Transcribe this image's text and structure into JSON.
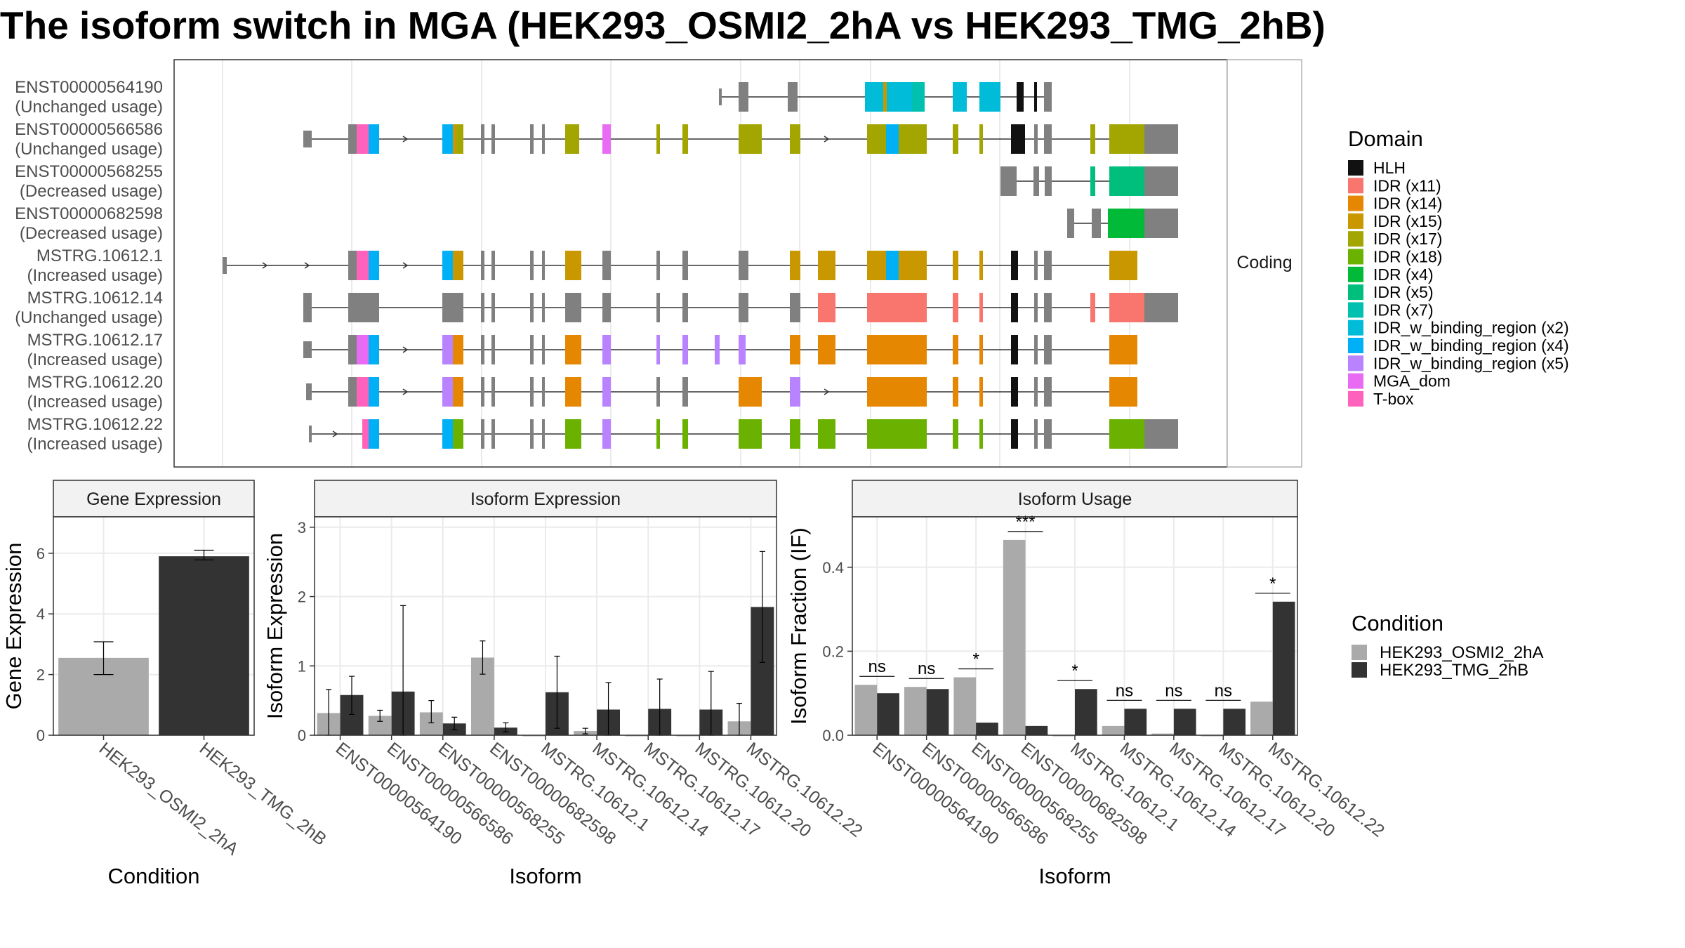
{
  "title": "The isoform switch in MGA (HEK293_OSMI2_2hA vs HEK293_TMG_2hB)",
  "structure": {
    "facet_label": "Coding",
    "isoforms": [
      {
        "id": "ENST00000564190",
        "usage": "(Unchanged usage)"
      },
      {
        "id": "ENST00000566586",
        "usage": "(Unchanged usage)"
      },
      {
        "id": "ENST00000568255",
        "usage": "(Decreased usage)"
      },
      {
        "id": "ENST00000682598",
        "usage": "(Decreased usage)"
      },
      {
        "id": "MSTRG.10612.1",
        "usage": "(Increased usage)"
      },
      {
        "id": "MSTRG.10612.14",
        "usage": "(Unchanged usage)"
      },
      {
        "id": "MSTRG.10612.17",
        "usage": "(Increased usage)"
      },
      {
        "id": "MSTRG.10612.20",
        "usage": "(Increased usage)"
      },
      {
        "id": "MSTRG.10612.22",
        "usage": "(Increased usage)"
      }
    ]
  },
  "domain_legend": {
    "title": "Domain",
    "items": [
      {
        "label": "HLH",
        "color": "#111111"
      },
      {
        "label": "IDR (x11)",
        "color": "#F8766D"
      },
      {
        "label": "IDR (x14)",
        "color": "#E58700"
      },
      {
        "label": "IDR (x15)",
        "color": "#C99800"
      },
      {
        "label": "IDR (x17)",
        "color": "#A3A500"
      },
      {
        "label": "IDR (x18)",
        "color": "#6BB100"
      },
      {
        "label": "IDR (x4)",
        "color": "#00BA38"
      },
      {
        "label": "IDR (x5)",
        "color": "#00BF7D"
      },
      {
        "label": "IDR (x7)",
        "color": "#00C0AF"
      },
      {
        "label": "IDR_w_binding_region (x2)",
        "color": "#00BCD8"
      },
      {
        "label": "IDR_w_binding_region (x4)",
        "color": "#00B0F6"
      },
      {
        "label": "IDR_w_binding_region (x5)",
        "color": "#B983FF"
      },
      {
        "label": "MGA_dom",
        "color": "#E76BF3"
      },
      {
        "label": "T-box",
        "color": "#FF62BC"
      }
    ]
  },
  "condition_legend": {
    "title": "Condition",
    "items": [
      {
        "label": "HEK293_OSMI2_2hA",
        "color": "#AAAAAA"
      },
      {
        "label": "HEK293_TMG_2hB",
        "color": "#333333"
      }
    ]
  },
  "chart_data": [
    {
      "type": "bar",
      "title": "Gene Expression",
      "xlabel": "Condition",
      "ylabel": "Gene Expression",
      "ylim": [
        0,
        7.2
      ],
      "yticks": [
        0,
        2,
        4,
        6
      ],
      "categories": [
        "HEK293_OSMI2_2hA",
        "HEK293_TMG_2hB"
      ],
      "values": [
        2.55,
        5.9
      ],
      "errors": [
        [
          2.0,
          3.08
        ],
        [
          5.78,
          6.1
        ]
      ],
      "colors": [
        "#AAAAAA",
        "#333333"
      ]
    },
    {
      "type": "bar",
      "title": "Isoform Expression",
      "xlabel": "Isoform",
      "ylabel": "Isoform Expression",
      "ylim": [
        0,
        3.15
      ],
      "yticks": [
        0,
        1,
        2,
        3
      ],
      "categories": [
        "ENST00000564190",
        "ENST00000566586",
        "ENST00000568255",
        "ENST00000682598",
        "MSTRG.10612.1",
        "MSTRG.10612.14",
        "MSTRG.10612.17",
        "MSTRG.10612.20",
        "MSTRG.10612.22"
      ],
      "series": [
        {
          "name": "HEK293_OSMI2_2hA",
          "values": [
            0.32,
            0.28,
            0.33,
            1.12,
            0.0,
            0.06,
            0.0,
            0.0,
            0.2
          ],
          "errors": [
            [
              0.0,
              0.66
            ],
            [
              0.2,
              0.36
            ],
            [
              0.18,
              0.5
            ],
            [
              0.88,
              1.36
            ],
            [
              0.0,
              0.0
            ],
            [
              0.02,
              0.1
            ],
            [
              0.0,
              0.0
            ],
            [
              0.0,
              0.0
            ],
            [
              0.0,
              0.46
            ]
          ]
        },
        {
          "name": "HEK293_TMG_2hB",
          "values": [
            0.58,
            0.63,
            0.17,
            0.11,
            0.62,
            0.37,
            0.38,
            0.37,
            1.85
          ],
          "errors": [
            [
              0.3,
              0.85
            ],
            [
              0.0,
              1.87
            ],
            [
              0.08,
              0.26
            ],
            [
              0.05,
              0.18
            ],
            [
              0.1,
              1.14
            ],
            [
              0.0,
              0.76
            ],
            [
              0.0,
              0.81
            ],
            [
              0.0,
              0.92
            ],
            [
              1.05,
              2.65
            ]
          ]
        }
      ]
    },
    {
      "type": "bar",
      "title": "Isoform Usage",
      "xlabel": "Isoform",
      "ylabel": "Isoform Fraction (IF)",
      "ylim": [
        0,
        0.52
      ],
      "yticks": [
        0.0,
        0.2,
        0.4
      ],
      "categories": [
        "ENST00000564190",
        "ENST00000566586",
        "ENST00000568255",
        "ENST00000682598",
        "MSTRG.10612.1",
        "MSTRG.10612.14",
        "MSTRG.10612.17",
        "MSTRG.10612.20",
        "MSTRG.10612.22"
      ],
      "series": [
        {
          "name": "HEK293_OSMI2_2hA",
          "values": [
            0.12,
            0.115,
            0.138,
            0.465,
            0.0,
            0.022,
            0.004,
            0.0,
            0.08
          ]
        },
        {
          "name": "HEK293_TMG_2hB",
          "values": [
            0.1,
            0.11,
            0.03,
            0.022,
            0.11,
            0.063,
            0.063,
            0.063,
            0.318
          ]
        }
      ],
      "significance": [
        "ns",
        "ns",
        "*",
        "***",
        "*",
        "ns",
        "ns",
        "ns",
        "*"
      ]
    }
  ]
}
